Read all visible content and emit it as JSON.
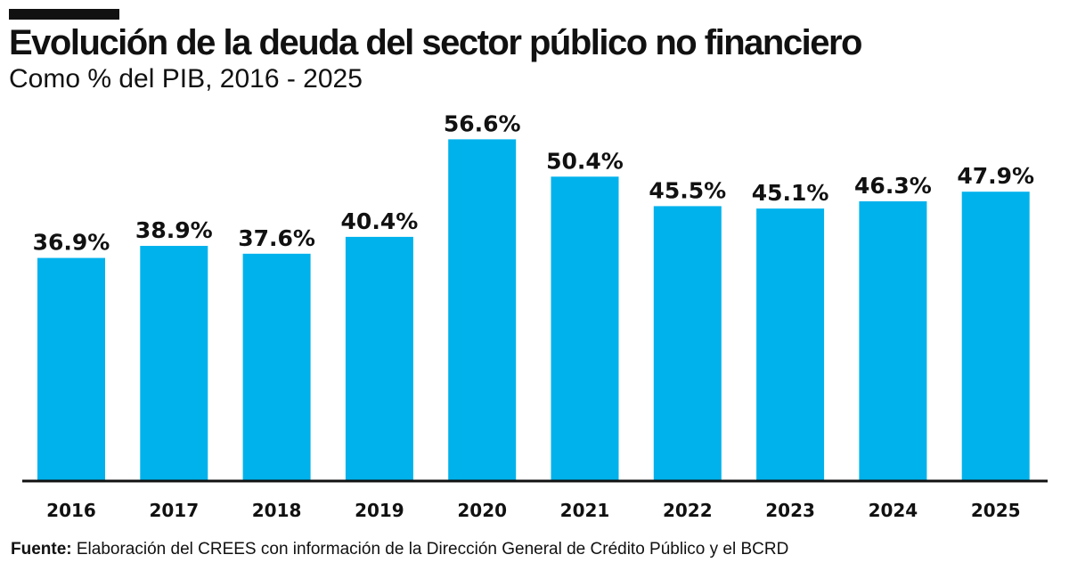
{
  "chart_data": {
    "type": "bar",
    "title": "Evolución de la deuda del sector público no financiero",
    "subtitle": "Como % del PIB, 2016 - 2025",
    "categories": [
      "2016",
      "2017",
      "2018",
      "2019",
      "2020",
      "2021",
      "2022",
      "2023",
      "2024",
      "2025"
    ],
    "values": [
      36.9,
      38.9,
      37.6,
      40.4,
      56.6,
      50.4,
      45.5,
      45.1,
      46.3,
      47.9
    ],
    "labels": [
      "36.9%",
      "38.9%",
      "37.6%",
      "40.4%",
      "56.6%",
      "50.4%",
      "45.5%",
      "45.1%",
      "46.3%",
      "47.9%"
    ],
    "xlabel": "",
    "ylabel": "",
    "ylim": [
      0,
      58
    ],
    "grid": false,
    "legend": "none",
    "bar_color": "#00b2ec"
  },
  "footer": {
    "label": "Fuente:",
    "text": " Elaboración del CREES con información de la Dirección General de Crédito Público y el BCRD"
  }
}
